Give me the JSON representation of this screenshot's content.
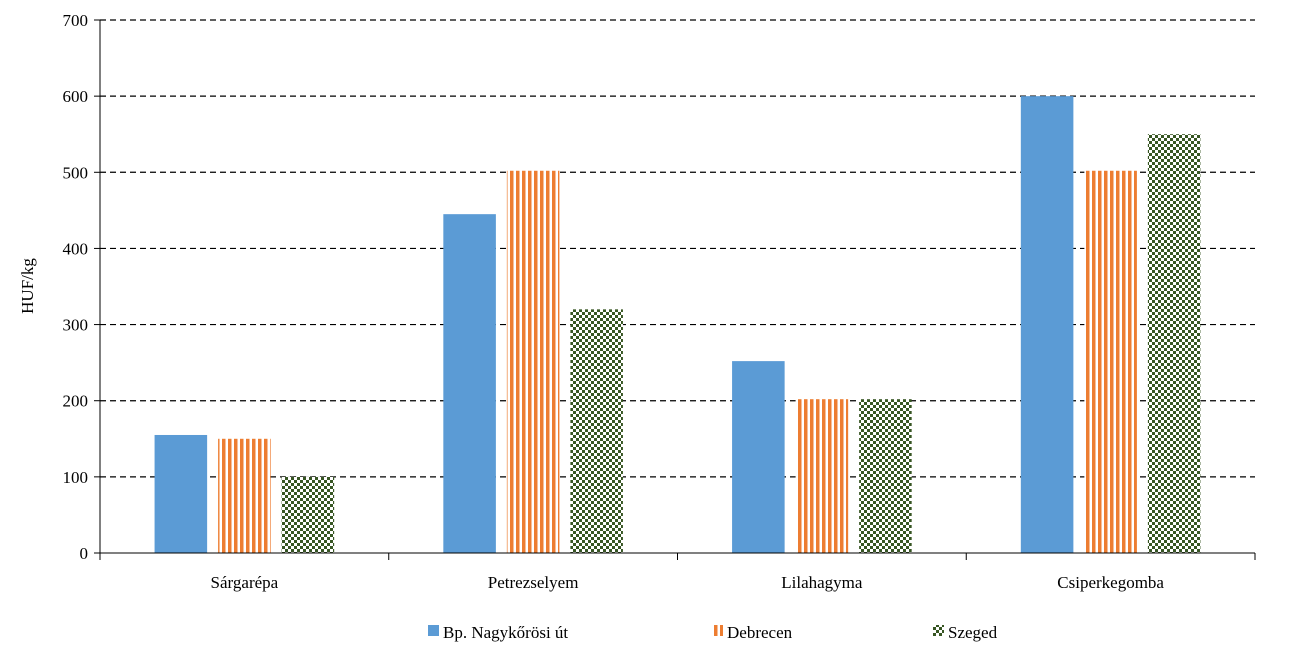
{
  "chart_data": {
    "type": "bar",
    "title": "",
    "xlabel": "",
    "ylabel": "HUF/kg",
    "ylim": [
      0,
      700
    ],
    "yticks": [
      0,
      100,
      200,
      300,
      400,
      500,
      600,
      700
    ],
    "grid": true,
    "legend_position": "bottom",
    "categories": [
      "Sárgarépa",
      "Petrezselyem",
      "Lilahagyma",
      "Csiperkegomba"
    ],
    "series": [
      {
        "name": "Bp. Nagykőrösi út",
        "values": [
          155,
          445,
          252,
          600
        ],
        "color": "#5B9BD5",
        "pattern": "solid"
      },
      {
        "name": "Debrecen",
        "values": [
          150,
          502,
          202,
          502
        ],
        "color": "#ED7D31",
        "pattern": "vertical-stripes"
      },
      {
        "name": "Szeged",
        "values": [
          100,
          320,
          202,
          550
        ],
        "color": "#375623",
        "pattern": "checker"
      }
    ]
  }
}
